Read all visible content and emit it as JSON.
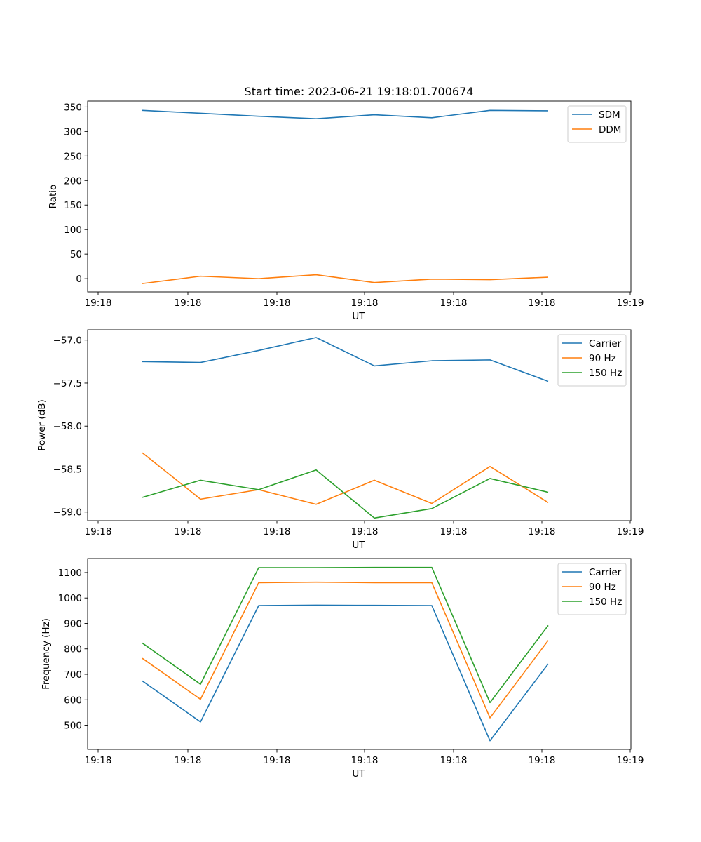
{
  "figure": {
    "title": "Start time: 2023-06-21 19:18:01.700674"
  },
  "colors": {
    "blue": "#1f77b4",
    "orange": "#ff7f0e",
    "green": "#2ca02c"
  },
  "chart_data": [
    {
      "type": "line",
      "title": "Start time: 2023-06-21 19:18:01.700674",
      "xlabel": "UT",
      "ylabel": "Ratio",
      "x_tick_labels": [
        "19:18",
        "19:18",
        "19:18",
        "19:18",
        "19:18",
        "19:18",
        "19:19"
      ],
      "y_ticks": [
        0,
        50,
        100,
        150,
        200,
        250,
        300,
        350
      ],
      "ylim": [
        -27,
        362
      ],
      "legend_position": "top-right",
      "grid": false,
      "series": [
        {
          "name": "SDM",
          "color": "blue",
          "values": [
            343,
            337,
            331,
            326,
            334,
            328,
            343,
            342
          ]
        },
        {
          "name": "DDM",
          "color": "orange",
          "values": [
            -10,
            5,
            0,
            8,
            -8,
            -1,
            -2,
            3
          ]
        }
      ]
    },
    {
      "type": "line",
      "title": "",
      "xlabel": "UT",
      "ylabel": "Power (dB)",
      "x_tick_labels": [
        "19:18",
        "19:18",
        "19:18",
        "19:18",
        "19:18",
        "19:18",
        "19:19"
      ],
      "y_ticks": [
        -57.0,
        -57.5,
        -58.0,
        -58.5,
        -59.0
      ],
      "y_tick_labels": [
        "−57.0",
        "−57.5",
        "−58.0",
        "−58.5",
        "−59.0"
      ],
      "ylim": [
        -59.1,
        -56.88
      ],
      "legend_position": "top-right",
      "grid": false,
      "series": [
        {
          "name": "Carrier",
          "color": "blue",
          "values": [
            -57.25,
            -57.26,
            -57.12,
            -56.97,
            -57.3,
            -57.24,
            -57.23,
            -57.48
          ]
        },
        {
          "name": "90 Hz",
          "color": "orange",
          "values": [
            -58.31,
            -58.85,
            -58.74,
            -58.91,
            -58.63,
            -58.9,
            -58.47,
            -58.89
          ]
        },
        {
          "name": "150 Hz",
          "color": "green",
          "values": [
            -58.83,
            -58.63,
            -58.74,
            -58.51,
            -59.07,
            -58.96,
            -58.61,
            -58.77
          ]
        }
      ]
    },
    {
      "type": "line",
      "title": "",
      "xlabel": "UT",
      "ylabel": "Frequency (Hz)",
      "x_tick_labels": [
        "19:18",
        "19:18",
        "19:18",
        "19:18",
        "19:18",
        "19:18",
        "19:19"
      ],
      "y_ticks": [
        500,
        600,
        700,
        800,
        900,
        1000,
        1100
      ],
      "ylim": [
        405,
        1155
      ],
      "legend_position": "top-right",
      "grid": false,
      "series": [
        {
          "name": "Carrier",
          "color": "blue",
          "values": [
            674,
            513,
            970,
            972,
            971,
            970,
            439,
            741
          ]
        },
        {
          "name": "90 Hz",
          "color": "orange",
          "values": [
            763,
            602,
            1060,
            1062,
            1060,
            1060,
            529,
            833
          ]
        },
        {
          "name": "150 Hz",
          "color": "green",
          "values": [
            823,
            661,
            1119,
            1119,
            1120,
            1120,
            589,
            892
          ]
        }
      ]
    }
  ]
}
